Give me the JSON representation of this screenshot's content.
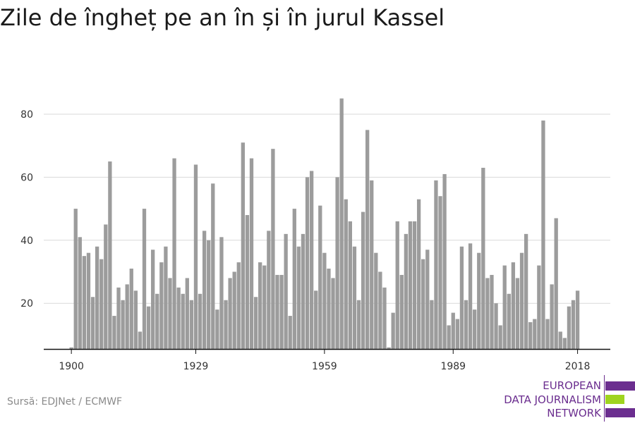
{
  "header": {
    "title": "Zile de îngheț pe an în și în jurul Kassel"
  },
  "footer": {
    "source": "Sursă: EDJNet / ECMWF"
  },
  "logo": {
    "line1": "EUROPEAN",
    "line2": "DATA JOURNALISM",
    "line3": "NETWORK",
    "colors": {
      "purple": "#6b2e8f",
      "green": "#9fd41f"
    }
  },
  "colors": {
    "bar": "#9c9c9c",
    "grid": "#d9d9d9",
    "axis": "#111111",
    "text": "#333333"
  },
  "chart_data": {
    "type": "bar",
    "title": "Zile de îngheț pe an în și în jurul Kassel",
    "xlabel": "",
    "ylabel": "",
    "x_start": 1900,
    "x_end": 2020,
    "x_ticks": [
      "1900",
      "1929",
      "1959",
      "1989",
      "2018"
    ],
    "y_ticks": [
      20,
      40,
      60,
      80
    ],
    "ylim": [
      5.5,
      90
    ],
    "grid": true,
    "values": [
      6,
      50,
      41,
      35,
      36,
      22,
      38,
      34,
      45,
      65,
      16,
      25,
      21,
      26,
      31,
      24,
      11,
      50,
      19,
      37,
      23,
      33,
      38,
      28,
      66,
      25,
      23,
      28,
      21,
      64,
      23,
      43,
      40,
      58,
      18,
      41,
      21,
      28,
      30,
      33,
      71,
      48,
      66,
      22,
      33,
      32,
      43,
      69,
      29,
      29,
      42,
      16,
      50,
      38,
      42,
      60,
      62,
      24,
      51,
      36,
      31,
      28,
      60,
      85,
      53,
      46,
      38,
      21,
      49,
      75,
      59,
      36,
      30,
      25,
      6,
      17,
      46,
      29,
      42,
      46,
      46,
      53,
      34,
      37,
      21,
      59,
      54,
      61,
      13,
      17,
      15,
      38,
      21,
      39,
      18,
      36,
      63,
      28,
      29,
      20,
      13,
      32,
      23,
      33,
      28,
      36,
      42,
      14,
      15,
      32,
      78,
      15,
      26,
      47,
      11,
      9,
      19,
      21,
      24
    ]
  }
}
